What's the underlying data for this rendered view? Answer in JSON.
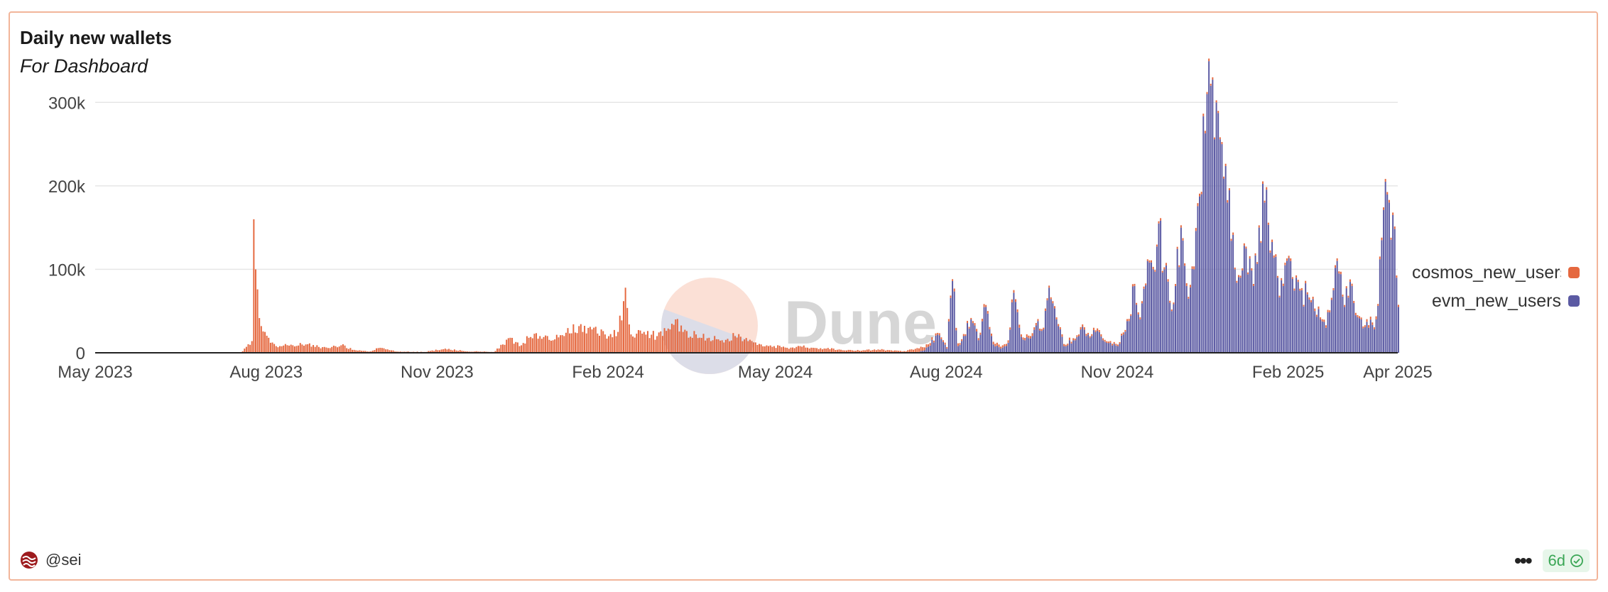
{
  "card": {
    "title": "Daily new wallets",
    "subtitle": "For Dashboard",
    "owner": "@sei",
    "freshness": "6d"
  },
  "watermark": {
    "text": "Dune"
  },
  "colors": {
    "cosmos": "#e5683f",
    "evm": "#5b5aa3",
    "grid": "#e6e6e6",
    "axis_text": "#444444",
    "badge_green": "#3aa655"
  },
  "chart_data": {
    "type": "bar",
    "stacked": true,
    "x_type": "date",
    "x_range": [
      "2023-05-01",
      "2025-04-01"
    ],
    "xticks": [
      "2023-05-01",
      "2023-08-01",
      "2023-11-01",
      "2024-02-01",
      "2024-05-01",
      "2024-08-01",
      "2024-11-01",
      "2025-02-01",
      "2025-04-01"
    ],
    "xtick_labels": [
      "May 2023",
      "Aug 2023",
      "Nov 2023",
      "Feb 2024",
      "May 2024",
      "Aug 2024",
      "Nov 2024",
      "Feb 2025",
      "Apr 2025"
    ],
    "ylim": [
      0,
      330000
    ],
    "yticks": [
      0,
      100000,
      200000,
      300000
    ],
    "ytick_labels": [
      "0",
      "100k",
      "200k",
      "300k"
    ],
    "grid": true,
    "legend_position": "right",
    "series": [
      {
        "name": "cosmos_new_users",
        "color": "#e5683f",
        "points": [
          [
            "2023-07-18",
            0
          ],
          [
            "2023-07-24",
            14000
          ],
          [
            "2023-07-25",
            160000
          ],
          [
            "2023-07-26",
            100000
          ],
          [
            "2023-07-27",
            76000
          ],
          [
            "2023-07-29",
            32000
          ],
          [
            "2023-07-31",
            25000
          ],
          [
            "2023-08-03",
            12000
          ],
          [
            "2023-08-08",
            8000
          ],
          [
            "2023-08-15",
            9000
          ],
          [
            "2023-08-22",
            10000
          ],
          [
            "2023-08-29",
            7000
          ],
          [
            "2023-09-05",
            7000
          ],
          [
            "2023-09-10",
            9000
          ],
          [
            "2023-09-18",
            3000
          ],
          [
            "2023-09-25",
            1500
          ],
          [
            "2023-10-01",
            6000
          ],
          [
            "2023-10-10",
            1500
          ],
          [
            "2023-10-25",
            1000
          ],
          [
            "2023-11-05",
            5000
          ],
          [
            "2023-11-15",
            2000
          ],
          [
            "2023-12-01",
            1000
          ],
          [
            "2023-12-10",
            18000
          ],
          [
            "2023-12-15",
            8000
          ],
          [
            "2023-12-20",
            18000
          ],
          [
            "2023-12-26",
            20000
          ],
          [
            "2024-01-02",
            15000
          ],
          [
            "2024-01-09",
            24000
          ],
          [
            "2024-01-16",
            32000
          ],
          [
            "2024-01-23",
            28000
          ],
          [
            "2024-01-30",
            22000
          ],
          [
            "2024-02-06",
            25000
          ],
          [
            "2024-02-10",
            78000
          ],
          [
            "2024-02-13",
            22000
          ],
          [
            "2024-02-20",
            25000
          ],
          [
            "2024-02-27",
            20000
          ],
          [
            "2024-03-05",
            28000
          ],
          [
            "2024-03-08",
            40000
          ],
          [
            "2024-03-12",
            25000
          ],
          [
            "2024-03-19",
            22000
          ],
          [
            "2024-03-26",
            18000
          ],
          [
            "2024-04-02",
            15000
          ],
          [
            "2024-04-09",
            20000
          ],
          [
            "2024-04-16",
            14000
          ],
          [
            "2024-04-23",
            10000
          ],
          [
            "2024-04-30",
            8000
          ],
          [
            "2024-05-07",
            6000
          ],
          [
            "2024-05-14",
            8000
          ],
          [
            "2024-05-21",
            6000
          ],
          [
            "2024-05-28",
            5000
          ],
          [
            "2024-06-04",
            4000
          ],
          [
            "2024-06-11",
            3000
          ],
          [
            "2024-06-18",
            3000
          ],
          [
            "2024-06-25",
            4000
          ],
          [
            "2024-07-02",
            3000
          ],
          [
            "2024-07-09",
            2000
          ],
          [
            "2024-07-16",
            5000
          ],
          [
            "2024-07-23",
            3000
          ],
          [
            "2024-07-30",
            2000
          ],
          [
            "2024-08-06",
            3000
          ],
          [
            "2024-08-13",
            2000
          ],
          [
            "2024-08-20",
            3000
          ],
          [
            "2024-08-27",
            3000
          ],
          [
            "2024-09-03",
            3000
          ],
          [
            "2024-09-10",
            3000
          ],
          [
            "2024-09-17",
            3000
          ],
          [
            "2024-09-24",
            2500
          ],
          [
            "2024-10-01",
            2500
          ],
          [
            "2024-10-08",
            2500
          ],
          [
            "2024-10-15",
            2500
          ],
          [
            "2024-10-22",
            2500
          ],
          [
            "2024-10-29",
            2000
          ],
          [
            "2024-11-05",
            2000
          ],
          [
            "2024-11-12",
            2500
          ],
          [
            "2024-11-19",
            2500
          ],
          [
            "2024-11-26",
            2500
          ],
          [
            "2024-12-03",
            2500
          ],
          [
            "2024-12-10",
            3000
          ],
          [
            "2024-12-17",
            3000
          ],
          [
            "2024-12-24",
            2500
          ],
          [
            "2024-12-31",
            2500
          ],
          [
            "2025-01-07",
            2500
          ],
          [
            "2025-01-14",
            2500
          ],
          [
            "2025-01-21",
            2500
          ],
          [
            "2025-01-28",
            2500
          ],
          [
            "2025-02-04",
            2500
          ],
          [
            "2025-02-11",
            2500
          ],
          [
            "2025-02-18",
            2500
          ],
          [
            "2025-02-25",
            2500
          ],
          [
            "2025-03-04",
            2500
          ],
          [
            "2025-03-11",
            2500
          ],
          [
            "2025-03-18",
            3000
          ],
          [
            "2025-03-23",
            3000
          ],
          [
            "2025-03-26",
            3000
          ],
          [
            "2025-03-30",
            3000
          ],
          [
            "2025-04-01",
            2500
          ]
        ]
      },
      {
        "name": "evm_new_users",
        "color": "#5b5aa3",
        "points": [
          [
            "2024-07-15",
            0
          ],
          [
            "2024-07-20",
            3000
          ],
          [
            "2024-07-27",
            22000
          ],
          [
            "2024-08-01",
            5000
          ],
          [
            "2024-08-04",
            86000
          ],
          [
            "2024-08-07",
            8000
          ],
          [
            "2024-08-10",
            20000
          ],
          [
            "2024-08-14",
            40000
          ],
          [
            "2024-08-18",
            15000
          ],
          [
            "2024-08-22",
            55000
          ],
          [
            "2024-08-26",
            10000
          ],
          [
            "2024-08-30",
            5000
          ],
          [
            "2024-09-03",
            12000
          ],
          [
            "2024-09-06",
            72000
          ],
          [
            "2024-09-09",
            30000
          ],
          [
            "2024-09-12",
            15000
          ],
          [
            "2024-09-16",
            20000
          ],
          [
            "2024-09-19",
            38000
          ],
          [
            "2024-09-22",
            28000
          ],
          [
            "2024-09-25",
            78000
          ],
          [
            "2024-09-29",
            40000
          ],
          [
            "2024-10-03",
            8000
          ],
          [
            "2024-10-08",
            15000
          ],
          [
            "2024-10-12",
            28000
          ],
          [
            "2024-10-16",
            22000
          ],
          [
            "2024-10-20",
            25000
          ],
          [
            "2024-10-24",
            15000
          ],
          [
            "2024-10-28",
            12000
          ],
          [
            "2024-11-01",
            8000
          ],
          [
            "2024-11-04",
            22000
          ],
          [
            "2024-11-07",
            38000
          ],
          [
            "2024-11-10",
            80000
          ],
          [
            "2024-11-13",
            40000
          ],
          [
            "2024-11-17",
            110000
          ],
          [
            "2024-11-20",
            100000
          ],
          [
            "2024-11-23",
            155000
          ],
          [
            "2024-11-26",
            100000
          ],
          [
            "2024-11-29",
            60000
          ],
          [
            "2024-12-02",
            80000
          ],
          [
            "2024-12-05",
            150000
          ],
          [
            "2024-12-08",
            80000
          ],
          [
            "2024-12-12",
            100000
          ],
          [
            "2024-12-16",
            190000
          ],
          [
            "2024-12-19",
            310000
          ],
          [
            "2024-12-21",
            320000
          ],
          [
            "2024-12-24",
            300000
          ],
          [
            "2024-12-27",
            250000
          ],
          [
            "2024-12-30",
            180000
          ],
          [
            "2025-01-03",
            100000
          ],
          [
            "2025-01-06",
            90000
          ],
          [
            "2025-01-09",
            125000
          ],
          [
            "2025-01-13",
            80000
          ],
          [
            "2025-01-16",
            150000
          ],
          [
            "2025-01-19",
            180000
          ],
          [
            "2025-01-22",
            120000
          ],
          [
            "2025-01-26",
            90000
          ],
          [
            "2025-01-29",
            80000
          ],
          [
            "2025-02-02",
            110000
          ],
          [
            "2025-02-05",
            90000
          ],
          [
            "2025-02-08",
            75000
          ],
          [
            "2025-02-11",
            70000
          ],
          [
            "2025-02-15",
            50000
          ],
          [
            "2025-02-18",
            40000
          ],
          [
            "2025-02-21",
            30000
          ],
          [
            "2025-02-25",
            75000
          ],
          [
            "2025-02-28",
            95000
          ],
          [
            "2025-03-03",
            55000
          ],
          [
            "2025-03-06",
            85000
          ],
          [
            "2025-03-09",
            45000
          ],
          [
            "2025-03-12",
            40000
          ],
          [
            "2025-03-16",
            30000
          ],
          [
            "2025-03-20",
            40000
          ],
          [
            "2025-03-23",
            135000
          ],
          [
            "2025-03-25",
            205000
          ],
          [
            "2025-03-27",
            180000
          ],
          [
            "2025-03-29",
            165000
          ],
          [
            "2025-03-31",
            90000
          ],
          [
            "2025-04-01",
            55000
          ]
        ]
      }
    ]
  }
}
